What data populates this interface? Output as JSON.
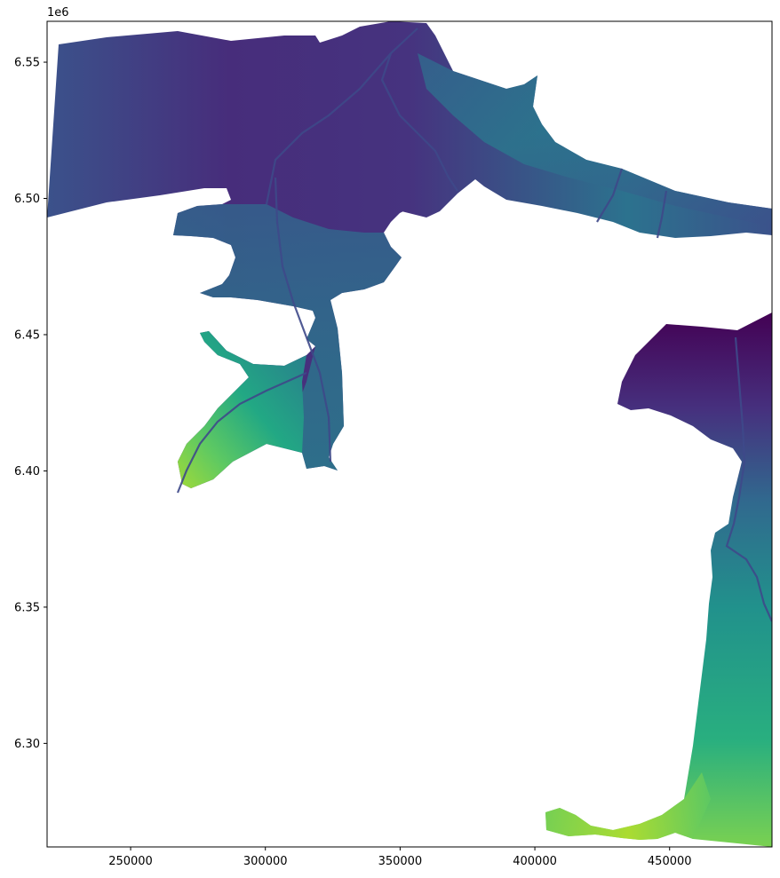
{
  "chart_data": {
    "type": "heatmap",
    "title": "",
    "xlabel": "",
    "ylabel": "",
    "xlim": [
      219000,
      488000
    ],
    "ylim": [
      6262000,
      6565000
    ],
    "y_offset_text": "1e6",
    "x_ticks": [
      {
        "value": 250000,
        "label": "250000"
      },
      {
        "value": 300000,
        "label": "300000"
      },
      {
        "value": 350000,
        "label": "350000"
      },
      {
        "value": 400000,
        "label": "400000"
      },
      {
        "value": 450000,
        "label": "450000"
      }
    ],
    "y_ticks": [
      {
        "value": 6300000,
        "label": "6.30"
      },
      {
        "value": 6350000,
        "label": "6.35"
      },
      {
        "value": 6400000,
        "label": "6.40"
      },
      {
        "value": 6450000,
        "label": "6.45"
      },
      {
        "value": 6500000,
        "label": "6.50"
      },
      {
        "value": 6550000,
        "label": "6.55"
      }
    ],
    "colormap": "viridis",
    "colors": {
      "low": "#440154",
      "mid_low": "#3b528b",
      "mid": "#21918c",
      "mid_high": "#5ec962",
      "high": "#b5de2b",
      "background": "#ffffff",
      "frame": "#000000"
    },
    "grid": false,
    "legend": "none"
  }
}
